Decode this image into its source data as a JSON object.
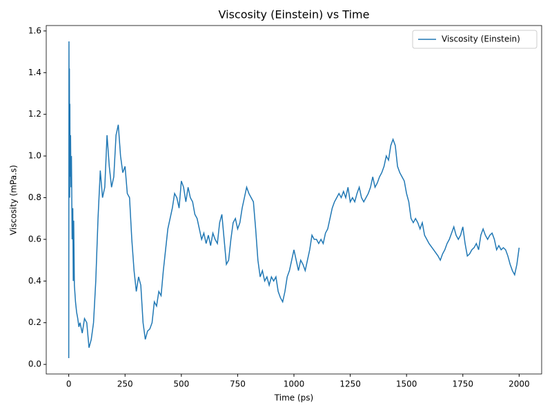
{
  "chart_data": {
    "type": "line",
    "title": "Viscosity (Einstein) vs Time",
    "x_label": "Time (ps)",
    "y_label": "Viscosity (mPa.s)",
    "x": [
      0,
      1,
      2,
      3,
      4,
      5,
      6,
      8,
      10,
      12,
      15,
      18,
      20,
      22,
      25,
      30,
      35,
      40,
      45,
      50,
      60,
      70,
      80,
      90,
      100,
      110,
      120,
      130,
      140,
      150,
      160,
      170,
      180,
      190,
      200,
      210,
      220,
      230,
      240,
      250,
      260,
      270,
      280,
      290,
      300,
      310,
      320,
      330,
      340,
      350,
      360,
      370,
      380,
      390,
      400,
      410,
      420,
      430,
      440,
      450,
      460,
      470,
      480,
      490,
      500,
      510,
      520,
      530,
      540,
      550,
      560,
      570,
      580,
      590,
      600,
      610,
      620,
      630,
      640,
      650,
      660,
      670,
      680,
      690,
      700,
      710,
      720,
      730,
      740,
      750,
      760,
      770,
      780,
      790,
      800,
      810,
      820,
      830,
      840,
      850,
      860,
      870,
      880,
      890,
      900,
      910,
      920,
      930,
      940,
      950,
      960,
      970,
      980,
      990,
      1000,
      1010,
      1020,
      1030,
      1040,
      1050,
      1060,
      1070,
      1080,
      1090,
      1100,
      1110,
      1120,
      1130,
      1140,
      1150,
      1160,
      1170,
      1180,
      1190,
      1200,
      1210,
      1220,
      1230,
      1240,
      1250,
      1260,
      1270,
      1280,
      1290,
      1300,
      1310,
      1320,
      1330,
      1340,
      1350,
      1360,
      1370,
      1380,
      1390,
      1400,
      1410,
      1420,
      1430,
      1440,
      1450,
      1460,
      1470,
      1480,
      1490,
      1500,
      1510,
      1520,
      1530,
      1540,
      1550,
      1560,
      1570,
      1580,
      1590,
      1600,
      1620,
      1640,
      1650,
      1660,
      1670,
      1680,
      1690,
      1700,
      1710,
      1720,
      1730,
      1740,
      1750,
      1760,
      1770,
      1780,
      1790,
      1800,
      1810,
      1820,
      1830,
      1840,
      1850,
      1860,
      1870,
      1880,
      1890,
      1900,
      1910,
      1920,
      1930,
      1940,
      1950,
      1960,
      1970,
      1980,
      1990,
      2000
    ],
    "series": [
      {
        "name": "Viscosity (Einstein)",
        "color": "#1f77b4",
        "values": [
          0.03,
          1.55,
          1.0,
          1.42,
          0.8,
          1.25,
          0.9,
          1.1,
          0.85,
          1.0,
          0.6,
          0.75,
          0.4,
          0.69,
          0.38,
          0.3,
          0.25,
          0.22,
          0.18,
          0.2,
          0.15,
          0.22,
          0.2,
          0.08,
          0.12,
          0.2,
          0.4,
          0.7,
          0.93,
          0.8,
          0.85,
          1.1,
          0.95,
          0.85,
          0.9,
          1.1,
          1.15,
          1.0,
          0.92,
          0.95,
          0.82,
          0.8,
          0.6,
          0.45,
          0.35,
          0.42,
          0.38,
          0.2,
          0.12,
          0.16,
          0.17,
          0.2,
          0.3,
          0.28,
          0.35,
          0.33,
          0.45,
          0.55,
          0.65,
          0.7,
          0.75,
          0.82,
          0.8,
          0.75,
          0.88,
          0.85,
          0.78,
          0.85,
          0.8,
          0.78,
          0.72,
          0.7,
          0.65,
          0.6,
          0.63,
          0.58,
          0.62,
          0.57,
          0.63,
          0.6,
          0.58,
          0.68,
          0.72,
          0.6,
          0.48,
          0.5,
          0.6,
          0.68,
          0.7,
          0.65,
          0.68,
          0.75,
          0.8,
          0.85,
          0.82,
          0.8,
          0.78,
          0.65,
          0.5,
          0.42,
          0.45,
          0.4,
          0.42,
          0.38,
          0.42,
          0.4,
          0.42,
          0.35,
          0.32,
          0.3,
          0.35,
          0.42,
          0.45,
          0.5,
          0.55,
          0.5,
          0.45,
          0.5,
          0.48,
          0.45,
          0.5,
          0.55,
          0.62,
          0.6,
          0.6,
          0.58,
          0.6,
          0.58,
          0.63,
          0.65,
          0.7,
          0.75,
          0.78,
          0.8,
          0.82,
          0.8,
          0.83,
          0.8,
          0.85,
          0.78,
          0.8,
          0.78,
          0.82,
          0.85,
          0.8,
          0.78,
          0.8,
          0.82,
          0.85,
          0.9,
          0.85,
          0.87,
          0.9,
          0.92,
          0.95,
          1.0,
          0.98,
          1.05,
          1.08,
          1.05,
          0.95,
          0.92,
          0.9,
          0.88,
          0.82,
          0.78,
          0.7,
          0.68,
          0.7,
          0.68,
          0.65,
          0.68,
          0.62,
          0.6,
          0.58,
          0.55,
          0.52,
          0.5,
          0.53,
          0.55,
          0.58,
          0.6,
          0.63,
          0.66,
          0.62,
          0.6,
          0.62,
          0.66,
          0.58,
          0.52,
          0.53,
          0.55,
          0.56,
          0.58,
          0.55,
          0.62,
          0.65,
          0.62,
          0.6,
          0.62,
          0.63,
          0.6,
          0.55,
          0.57,
          0.55,
          0.56,
          0.55,
          0.52,
          0.48,
          0.45,
          0.43,
          0.48,
          0.56
        ]
      }
    ],
    "xlim": [
      -100,
      2100
    ],
    "xticks": [
      0,
      250,
      500,
      750,
      1000,
      1250,
      1500,
      1750,
      2000
    ],
    "ylim": [
      -0.046,
      1.626
    ],
    "yticks": [
      {
        "value": 0,
        "label": "0.0"
      },
      0.2,
      0.4,
      0.6,
      0.8,
      {
        "value": 1,
        "label": "1.0"
      },
      1.2,
      1.4,
      1.6
    ],
    "legend": "upper right"
  }
}
